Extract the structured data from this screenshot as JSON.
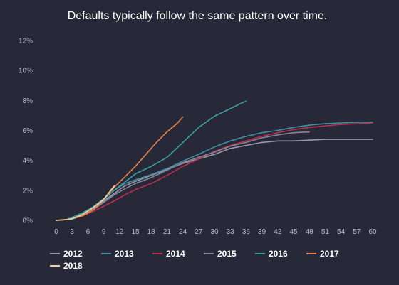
{
  "chart_data": {
    "type": "line",
    "title": "Defaults typically follow the same pattern over time.",
    "xlabel": "",
    "ylabel": "",
    "xlim": [
      0,
      60
    ],
    "ylim": [
      0,
      12
    ],
    "x_ticks": [
      "0",
      "3",
      "6",
      "9",
      "12",
      "15",
      "18",
      "21",
      "24",
      "27",
      "30",
      "33",
      "36",
      "39",
      "42",
      "45",
      "48",
      "51",
      "54",
      "57",
      "60"
    ],
    "y_ticks": [
      "0%",
      "2%",
      "4%",
      "6%",
      "8%",
      "10%",
      "12%"
    ],
    "grid": false,
    "legend_position": "bottom-left",
    "series": [
      {
        "name": "2012",
        "color": "#9a9aac",
        "points": [
          [
            0,
            0
          ],
          [
            2,
            0.05
          ],
          [
            3,
            0.1
          ],
          [
            5,
            0.35
          ],
          [
            7,
            0.7
          ],
          [
            9,
            1.3
          ],
          [
            11,
            1.8
          ],
          [
            13,
            2.3
          ],
          [
            15,
            2.6
          ],
          [
            18,
            3.0
          ],
          [
            21,
            3.4
          ],
          [
            24,
            3.8
          ],
          [
            27,
            4.1
          ],
          [
            30,
            4.4
          ],
          [
            33,
            4.8
          ],
          [
            36,
            5.0
          ],
          [
            39,
            5.2
          ],
          [
            42,
            5.3
          ],
          [
            45,
            5.3
          ],
          [
            48,
            5.35
          ],
          [
            51,
            5.4
          ],
          [
            54,
            5.4
          ],
          [
            57,
            5.4
          ],
          [
            60,
            5.4
          ]
        ]
      },
      {
        "name": "2013",
        "color": "#3f8fa6",
        "points": [
          [
            0,
            0
          ],
          [
            2,
            0.05
          ],
          [
            3,
            0.15
          ],
          [
            5,
            0.45
          ],
          [
            7,
            0.8
          ],
          [
            9,
            1.4
          ],
          [
            11,
            2.0
          ],
          [
            13,
            2.45
          ],
          [
            15,
            2.7
          ],
          [
            18,
            3.05
          ],
          [
            21,
            3.45
          ],
          [
            24,
            3.95
          ],
          [
            27,
            4.4
          ],
          [
            30,
            4.9
          ],
          [
            33,
            5.3
          ],
          [
            36,
            5.6
          ],
          [
            39,
            5.85
          ],
          [
            42,
            6.0
          ],
          [
            45,
            6.2
          ],
          [
            48,
            6.35
          ],
          [
            51,
            6.45
          ],
          [
            54,
            6.5
          ],
          [
            57,
            6.55
          ],
          [
            60,
            6.55
          ]
        ]
      },
      {
        "name": "2014",
        "color": "#b8314a",
        "points": [
          [
            0,
            0
          ],
          [
            2,
            0.05
          ],
          [
            3,
            0.1
          ],
          [
            5,
            0.3
          ],
          [
            7,
            0.6
          ],
          [
            9,
            0.95
          ],
          [
            11,
            1.3
          ],
          [
            13,
            1.7
          ],
          [
            15,
            2.05
          ],
          [
            18,
            2.45
          ],
          [
            21,
            3.0
          ],
          [
            24,
            3.6
          ],
          [
            27,
            4.1
          ],
          [
            30,
            4.6
          ],
          [
            33,
            5.0
          ],
          [
            36,
            5.3
          ],
          [
            39,
            5.6
          ],
          [
            42,
            5.85
          ],
          [
            45,
            6.05
          ],
          [
            48,
            6.2
          ],
          [
            51,
            6.3
          ],
          [
            54,
            6.4
          ],
          [
            57,
            6.45
          ],
          [
            60,
            6.5
          ]
        ]
      },
      {
        "name": "2015",
        "color": "#8a8499",
        "points": [
          [
            0,
            0
          ],
          [
            2,
            0.05
          ],
          [
            3,
            0.1
          ],
          [
            5,
            0.35
          ],
          [
            7,
            0.7
          ],
          [
            9,
            1.2
          ],
          [
            11,
            1.7
          ],
          [
            13,
            2.1
          ],
          [
            15,
            2.45
          ],
          [
            18,
            2.85
          ],
          [
            21,
            3.35
          ],
          [
            24,
            3.85
          ],
          [
            27,
            4.2
          ],
          [
            30,
            4.55
          ],
          [
            33,
            4.95
          ],
          [
            36,
            5.2
          ],
          [
            39,
            5.5
          ],
          [
            42,
            5.7
          ],
          [
            45,
            5.85
          ],
          [
            48,
            5.9
          ]
        ]
      },
      {
        "name": "2016",
        "color": "#3b9f9f",
        "points": [
          [
            0,
            0
          ],
          [
            2,
            0.05
          ],
          [
            3,
            0.2
          ],
          [
            5,
            0.5
          ],
          [
            7,
            0.9
          ],
          [
            9,
            1.45
          ],
          [
            11,
            2.0
          ],
          [
            13,
            2.55
          ],
          [
            15,
            3.1
          ],
          [
            18,
            3.6
          ],
          [
            21,
            4.2
          ],
          [
            24,
            5.2
          ],
          [
            27,
            6.2
          ],
          [
            30,
            6.95
          ],
          [
            33,
            7.45
          ],
          [
            35,
            7.8
          ],
          [
            36,
            7.95
          ]
        ]
      },
      {
        "name": "2017",
        "color": "#e8844a",
        "points": [
          [
            0,
            0
          ],
          [
            2,
            0.05
          ],
          [
            3,
            0.1
          ],
          [
            5,
            0.3
          ],
          [
            7,
            0.7
          ],
          [
            9,
            1.4
          ],
          [
            11,
            2.2
          ],
          [
            13,
            2.9
          ],
          [
            15,
            3.6
          ],
          [
            17,
            4.4
          ],
          [
            19,
            5.2
          ],
          [
            21,
            5.9
          ],
          [
            23,
            6.5
          ],
          [
            24,
            6.9
          ]
        ]
      },
      {
        "name": "2018",
        "color": "#f0d2a4",
        "points": [
          [
            0,
            0
          ],
          [
            2,
            0.05
          ],
          [
            3,
            0.1
          ],
          [
            5,
            0.4
          ],
          [
            7,
            0.85
          ],
          [
            9,
            1.4
          ],
          [
            10,
            1.85
          ],
          [
            11,
            2.3
          ]
        ]
      }
    ]
  }
}
